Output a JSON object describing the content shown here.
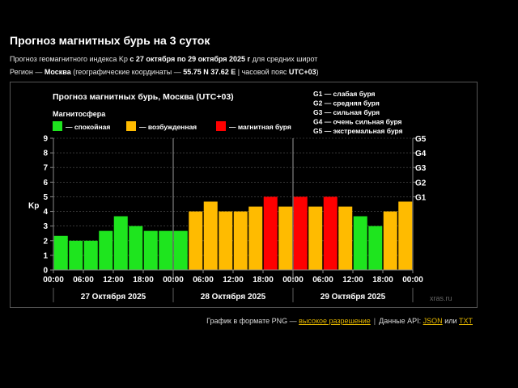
{
  "header": {
    "title": "Прогноз магнитных бурь на 3 суток",
    "line1": {
      "prefix": "Прогноз геомагнитного индекса Kp ",
      "range": "с 27 октября по 29 октября 2025 г",
      "suffix": " для средних широт"
    },
    "line2": {
      "prefix": "Регион — ",
      "region": "Москва",
      "mid": " (географические координаты — ",
      "coords": "55.75 N 37.62 E",
      "sep": " | часовой пояс ",
      "tz": "UTC+03",
      "end": ")"
    }
  },
  "colors": {
    "calm": "#1ee51e",
    "disturbed": "#ffbb00",
    "storm": "#ff0000",
    "text": "#ffffff",
    "grid": "#555555",
    "link": "#e6b800"
  },
  "chart_data": {
    "type": "bar",
    "title": "Прогноз магнитных бурь, Москва (UTC+03)",
    "legend_title": "Магнитосфера",
    "legend": [
      {
        "label": "— спокойная",
        "status": "calm"
      },
      {
        "label": "— возбужденная",
        "status": "disturbed"
      },
      {
        "label": "— магнитная буря",
        "status": "storm"
      }
    ],
    "g_legend": [
      "G1 — слабая буря",
      "G2 — средняя буря",
      "G3 — сильная буря",
      "G4 — очень сильная буря",
      "G5 — экстремальная буря"
    ],
    "ylabel": "Kp",
    "ylim": [
      0,
      9
    ],
    "yticks": [
      "0",
      "1",
      "2",
      "3",
      "4",
      "5",
      "6",
      "7",
      "8",
      "9"
    ],
    "right_ticks": [
      {
        "label": "G1",
        "value": 5
      },
      {
        "label": "G2",
        "value": 6
      },
      {
        "label": "G3",
        "value": 7
      },
      {
        "label": "G4",
        "value": 8
      },
      {
        "label": "G5",
        "value": 9
      }
    ],
    "xticks": [
      "00:00",
      "06:00",
      "12:00",
      "18:00",
      "00:00",
      "06:00",
      "12:00",
      "18:00",
      "00:00",
      "06:00",
      "12:00",
      "18:00",
      "00:00"
    ],
    "days": [
      "27 Октября 2025",
      "28 Октября 2025",
      "29 Октября 2025"
    ],
    "values": [
      2.33,
      2.0,
      2.0,
      2.67,
      3.67,
      3.0,
      2.67,
      2.67,
      2.67,
      4.0,
      4.67,
      4.0,
      4.0,
      4.33,
      5.0,
      4.33,
      5.0,
      4.33,
      5.0,
      4.33,
      3.67,
      3.0,
      4.0,
      4.67
    ],
    "status": [
      "calm",
      "calm",
      "calm",
      "calm",
      "calm",
      "calm",
      "calm",
      "calm",
      "calm",
      "disturbed",
      "disturbed",
      "disturbed",
      "disturbed",
      "disturbed",
      "storm",
      "disturbed",
      "storm",
      "disturbed",
      "storm",
      "disturbed",
      "calm",
      "calm",
      "disturbed",
      "disturbed"
    ],
    "watermark": "xras.ru",
    "grid": true
  },
  "footer": {
    "png_text": "График в формате PNG — ",
    "png_link": "высокое разрешение",
    "sep": "|",
    "api_text": "Данные API: ",
    "json_link": "JSON",
    "or": " или ",
    "txt_link": "TXT"
  }
}
